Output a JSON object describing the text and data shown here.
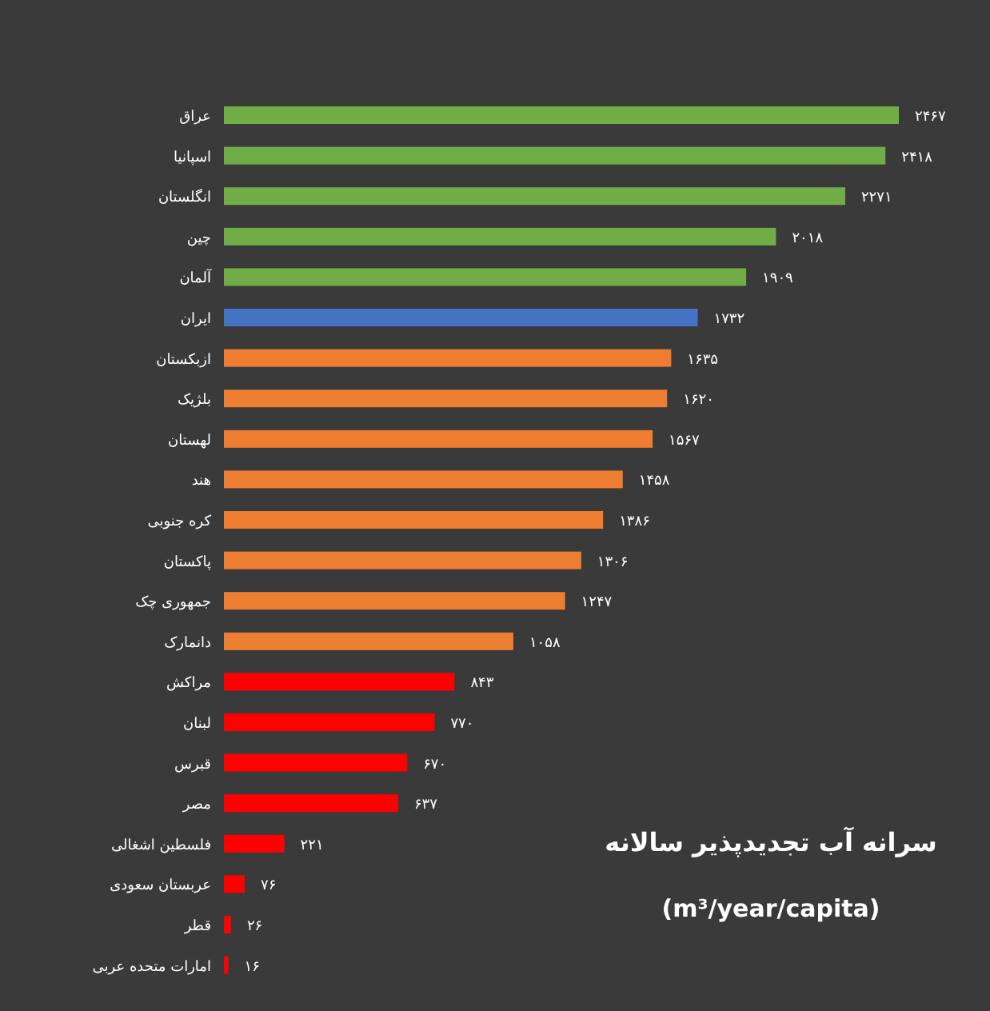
{
  "chart_data": {
    "type": "bar",
    "orientation": "horizontal",
    "title": "سرانه آب تجدیدپذیر سالانه",
    "subtitle": "(m³/year/capita)",
    "categories": [
      "عراق",
      "اسپانیا",
      "انگلستان",
      "چین",
      "آلمان",
      "ایران",
      "ازبکستان",
      "بلژیک",
      "لهستان",
      "هند",
      "کره جنوبی",
      "پاکستان",
      "جمهوری چک",
      "دانمارک",
      "مراکش",
      "لبنان",
      "قبرس",
      "مصر",
      "فلسطین اشغالی",
      "عربستان سعودی",
      "قطر",
      "امارات متحده عربی"
    ],
    "values": [
      2467,
      2418,
      2271,
      2018,
      1909,
      1732,
      1635,
      1620,
      1567,
      1458,
      1386,
      1306,
      1247,
      1058,
      843,
      770,
      670,
      637,
      221,
      76,
      26,
      16
    ],
    "value_labels": [
      "۲۴۶۷",
      "۲۴۱۸",
      "۲۲۷۱",
      "۲۰۱۸",
      "۱۹۰۹",
      "۱۷۳۲",
      "۱۶۳۵",
      "۱۶۲۰",
      "۱۵۶۷",
      "۱۴۵۸",
      "۱۳۸۶",
      "۱۳۰۶",
      "۱۲۴۷",
      "۱۰۵۸",
      "۸۴۳",
      "۷۷۰",
      "۶۷۰",
      "۶۳۷",
      "۲۲۱",
      "۷۶",
      "۲۶",
      "۱۶"
    ],
    "colors": [
      "#70ad47",
      "#70ad47",
      "#70ad47",
      "#70ad47",
      "#70ad47",
      "#4472c4",
      "#ed7d31",
      "#ed7d31",
      "#ed7d31",
      "#ed7d31",
      "#ed7d31",
      "#ed7d31",
      "#ed7d31",
      "#ed7d31",
      "#ff0000",
      "#ff0000",
      "#ff0000",
      "#ff0000",
      "#ff0000",
      "#ff0000",
      "#ff0000",
      "#ff0000"
    ]
  }
}
